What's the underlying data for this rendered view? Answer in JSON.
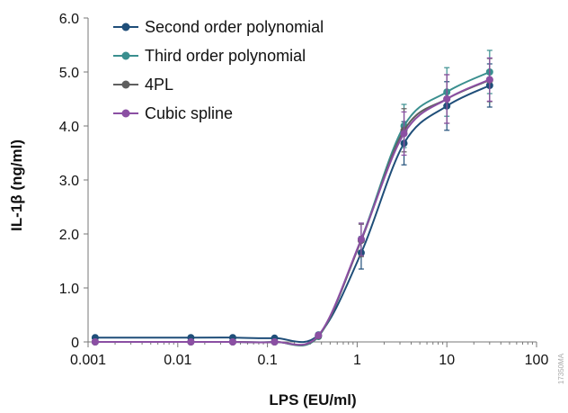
{
  "chart_data": {
    "type": "line",
    "xlabel": "LPS (EU/ml)",
    "ylabel": "IL-1β (ng/ml)",
    "xscale": "log",
    "xlim": [
      0.001,
      100
    ],
    "ylim": [
      0,
      6
    ],
    "x_ticks": [
      0.001,
      0.01,
      0.1,
      1,
      10,
      100
    ],
    "x_tick_labels": [
      "0.001",
      "0.01",
      "0.1",
      "1",
      "10",
      "100"
    ],
    "y_ticks": [
      0,
      1,
      2,
      3,
      4,
      5,
      6
    ],
    "y_tick_labels": [
      "0",
      "1.0",
      "2.0",
      "3.0",
      "4.0",
      "5.0",
      "6.0"
    ],
    "x": [
      0.0012,
      0.014,
      0.041,
      0.12,
      0.37,
      1.11,
      3.33,
      10,
      30
    ],
    "error": [
      0.02,
      0.02,
      0.02,
      0.02,
      0.05,
      0.3,
      0.4,
      0.45,
      0.4
    ],
    "legend_position": "top-left",
    "grid": false,
    "series": [
      {
        "name": "Second order polynomial",
        "color": "#1f4e79",
        "values": [
          0.08,
          0.08,
          0.08,
          0.07,
          0.13,
          1.65,
          3.68,
          4.37,
          4.75
        ]
      },
      {
        "name": "Third order polynomial",
        "color": "#3a8f8f",
        "values": [
          0.0,
          0.0,
          0.0,
          0.0,
          0.1,
          1.9,
          4.0,
          4.63,
          5.0
        ]
      },
      {
        "name": "4PL",
        "color": "#5f5f5f",
        "values": [
          0.0,
          0.0,
          0.0,
          0.0,
          0.11,
          1.88,
          3.92,
          4.5,
          4.85
        ]
      },
      {
        "name": "Cubic spline",
        "color": "#8b4fa3",
        "values": [
          0.0,
          0.0,
          0.0,
          0.0,
          0.12,
          1.9,
          3.86,
          4.5,
          4.86
        ]
      }
    ]
  },
  "watermark": "17350MA"
}
